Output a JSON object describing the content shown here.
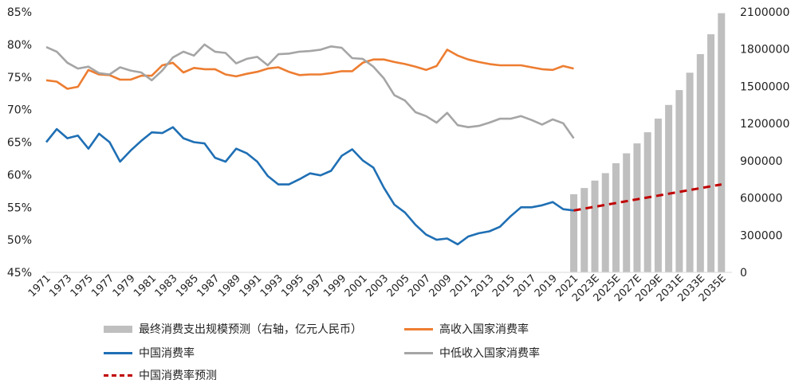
{
  "chart_data": {
    "type": "line+bar",
    "left_axis": {
      "min": 45,
      "max": 85,
      "step": 5,
      "suffix": "%"
    },
    "right_axis": {
      "min": 0,
      "max": 2100000,
      "step": 300000
    },
    "x_labels": [
      "1971",
      "1973",
      "1975",
      "1977",
      "1979",
      "1981",
      "1983",
      "1985",
      "1987",
      "1989",
      "1991",
      "1993",
      "1995",
      "1997",
      "1999",
      "2001",
      "2003",
      "2005",
      "2007",
      "2009",
      "2011",
      "2013",
      "2015",
      "2017",
      "2019",
      "2021",
      "2023E",
      "2025E",
      "2027E",
      "2029E",
      "2031E",
      "2033E",
      "2035E"
    ],
    "years_hist": [
      1971,
      1972,
      1973,
      1974,
      1975,
      1976,
      1977,
      1978,
      1979,
      1980,
      1981,
      1982,
      1983,
      1984,
      1985,
      1986,
      1987,
      1988,
      1989,
      1990,
      1991,
      1992,
      1993,
      1994,
      1995,
      1996,
      1997,
      1998,
      1999,
      2000,
      2001,
      2002,
      2003,
      2004,
      2005,
      2006,
      2007,
      2008,
      2009,
      2010,
      2011,
      2012,
      2013,
      2014,
      2015,
      2016,
      2017,
      2018,
      2019,
      2020,
      2021
    ],
    "series": [
      {
        "name": "中国消费率",
        "color": "#1F6FB4",
        "axis": "left",
        "values": [
          65.0,
          67.0,
          65.6,
          66.0,
          64.0,
          66.3,
          65.0,
          62.0,
          63.7,
          65.2,
          66.5,
          66.4,
          67.3,
          65.6,
          65.0,
          64.8,
          62.6,
          62.0,
          64.0,
          63.3,
          62.0,
          59.8,
          58.5,
          58.5,
          59.3,
          60.2,
          59.9,
          60.6,
          62.9,
          63.9,
          62.2,
          61.1,
          58.0,
          55.4,
          54.2,
          52.3,
          50.8,
          50.0,
          50.2,
          49.3,
          50.5,
          51.0,
          51.3,
          52.0,
          53.6,
          55.0,
          55.0,
          55.3,
          55.8,
          54.7,
          54.5
        ]
      },
      {
        "name": "高收入国家消费率",
        "color": "#ED7D31",
        "axis": "left",
        "values": [
          74.5,
          74.3,
          73.2,
          73.5,
          76.1,
          75.4,
          75.3,
          74.6,
          74.6,
          75.2,
          75.2,
          76.8,
          77.2,
          75.7,
          76.4,
          76.2,
          76.2,
          75.4,
          75.1,
          75.5,
          75.8,
          76.3,
          76.5,
          75.8,
          75.3,
          75.4,
          75.4,
          75.6,
          75.9,
          75.9,
          77.2,
          77.7,
          77.7,
          77.3,
          77.0,
          76.6,
          76.1,
          76.7,
          79.2,
          78.3,
          77.7,
          77.3,
          77.0,
          76.8,
          76.8,
          76.8,
          76.5,
          76.2,
          76.1,
          76.7,
          76.3
        ]
      },
      {
        "name": "中低收入国家消费率",
        "color": "#A5A5A5",
        "axis": "left",
        "values": [
          79.6,
          78.9,
          77.2,
          76.3,
          76.6,
          75.6,
          75.4,
          76.5,
          76.0,
          75.7,
          74.5,
          76.0,
          78.0,
          78.9,
          78.3,
          80.0,
          78.9,
          78.7,
          77.1,
          77.8,
          78.1,
          76.8,
          78.5,
          78.6,
          78.9,
          79.0,
          79.2,
          79.7,
          79.5,
          77.9,
          77.8,
          76.6,
          74.8,
          72.2,
          71.4,
          69.6,
          69.0,
          68.0,
          69.5,
          67.6,
          67.3,
          67.5,
          68.0,
          68.6,
          68.6,
          69.0,
          68.4,
          67.7,
          68.5,
          67.9,
          65.6
        ]
      }
    ],
    "bar_series": {
      "name": "最终消费支出规模预测（右轴，亿元人民币）",
      "color": "#BFBFBF",
      "axis": "right",
      "years": [
        2021,
        2022,
        2023,
        2024,
        2025,
        2026,
        2027,
        2028,
        2029,
        2030,
        2031,
        2032,
        2033,
        2034,
        2035
      ],
      "values": [
        630000,
        680000,
        740000,
        800000,
        880000,
        960000,
        1040000,
        1130000,
        1240000,
        1350000,
        1470000,
        1610000,
        1760000,
        1920000,
        2090000
      ]
    },
    "forecast_series": {
      "name": "中国消费率预测",
      "color": "#C00000",
      "axis": "left",
      "points": [
        [
          2021,
          54.5
        ],
        [
          2035,
          58.5
        ]
      ]
    },
    "legend": [
      {
        "label": "最终消费支出规模预测（右轴，亿元人民币）",
        "kind": "bar",
        "color": "#BFBFBF"
      },
      {
        "label": "高收入国家消费率",
        "kind": "line",
        "color": "#ED7D31"
      },
      {
        "label": "中国消费率",
        "kind": "line",
        "color": "#1F6FB4"
      },
      {
        "label": "中低收入国家消费率",
        "kind": "line",
        "color": "#A5A5A5"
      },
      {
        "label": "中国消费率预测",
        "kind": "dash",
        "color": "#C00000"
      }
    ]
  }
}
